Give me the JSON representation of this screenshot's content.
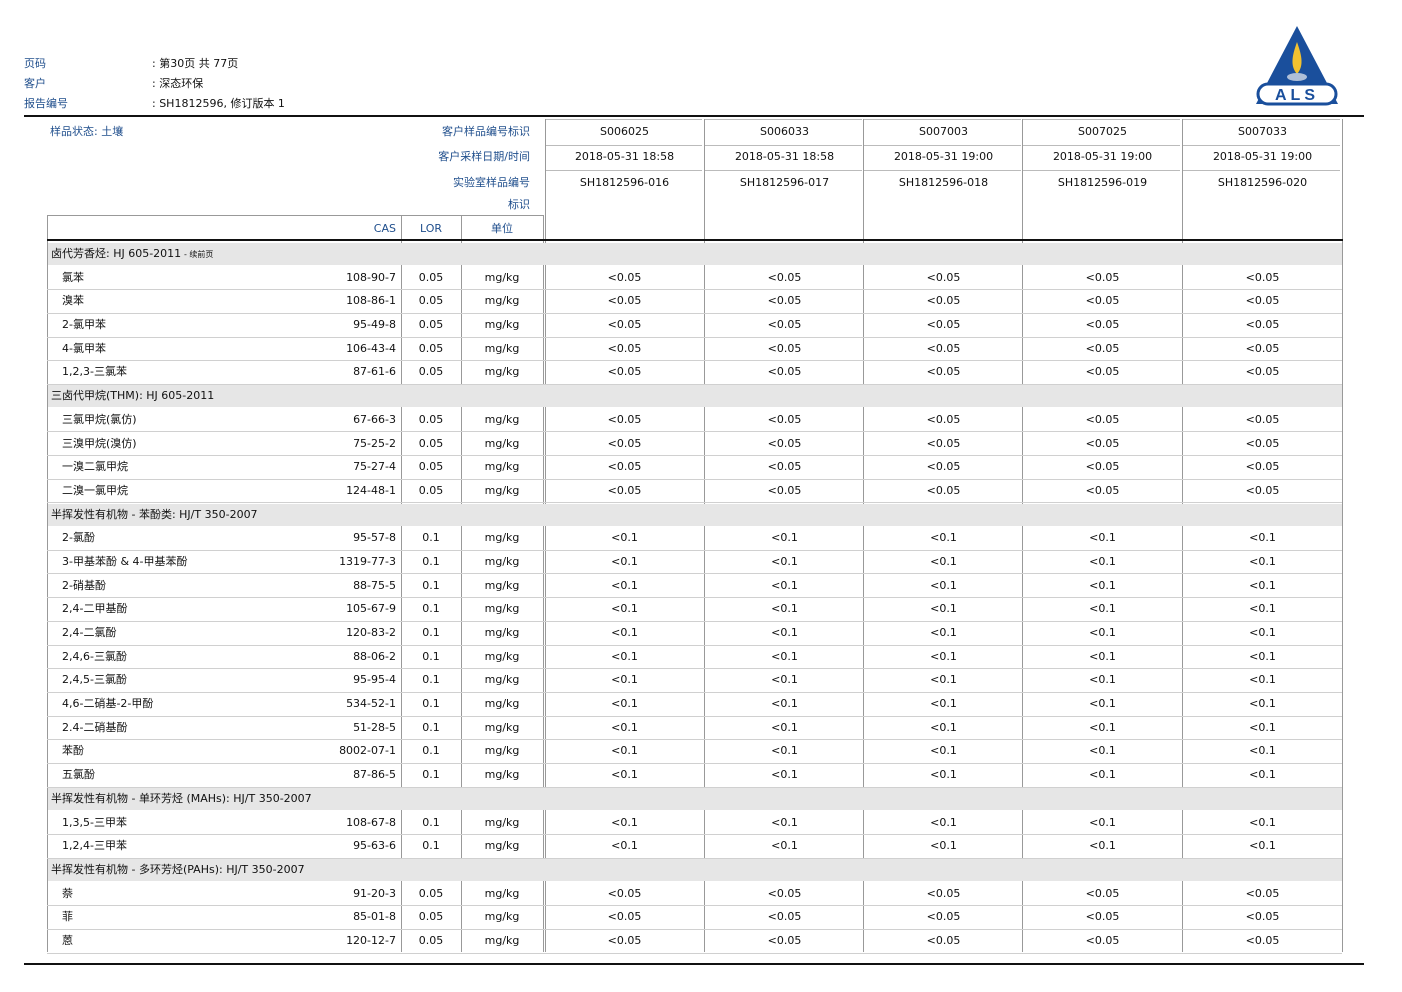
{
  "header": {
    "fields": [
      {
        "label": "页码",
        "value": ": 第30页 共 77页"
      },
      {
        "label": "客户",
        "value": ": 深态环保"
      },
      {
        "label": "报告编号",
        "value": ": SH1812596, 修订版本 1"
      }
    ],
    "logo": "ALS"
  },
  "sample_state": "样品状态: 土壤",
  "sample_labels": [
    "客户样品编号标识",
    "客户采样日期/时间",
    "实验室样品编号",
    "标识"
  ],
  "columns": [
    "CAS",
    "LOR",
    "单位"
  ],
  "samples": [
    {
      "id": "S006025",
      "date": "2018-05-31 18:58",
      "lab": "SH1812596-016"
    },
    {
      "id": "S006033",
      "date": "2018-05-31 18:58",
      "lab": "SH1812596-017"
    },
    {
      "id": "S007003",
      "date": "2018-05-31 19:00",
      "lab": "SH1812596-018"
    },
    {
      "id": "S007025",
      "date": "2018-05-31 19:00",
      "lab": "SH1812596-019"
    },
    {
      "id": "S007033",
      "date": "2018-05-31 19:00",
      "lab": "SH1812596-020"
    }
  ],
  "groups": [
    {
      "title": "卤代芳香烃: HJ 605-2011",
      "note": "- 续前页",
      "rows": [
        {
          "name": "氯苯",
          "cas": "108-90-7",
          "lor": 0.05,
          "unit": "mg/kg",
          "results": [
            "<0.05",
            "<0.05",
            "<0.05",
            "<0.05",
            "<0.05"
          ]
        },
        {
          "name": "溴苯",
          "cas": "108-86-1",
          "lor": 0.05,
          "unit": "mg/kg",
          "results": [
            "<0.05",
            "<0.05",
            "<0.05",
            "<0.05",
            "<0.05"
          ]
        },
        {
          "name": "2-氯甲苯",
          "cas": "95-49-8",
          "lor": 0.05,
          "unit": "mg/kg",
          "results": [
            "<0.05",
            "<0.05",
            "<0.05",
            "<0.05",
            "<0.05"
          ]
        },
        {
          "name": "4-氯甲苯",
          "cas": "106-43-4",
          "lor": 0.05,
          "unit": "mg/kg",
          "results": [
            "<0.05",
            "<0.05",
            "<0.05",
            "<0.05",
            "<0.05"
          ]
        },
        {
          "name": "1,2,3-三氯苯",
          "cas": "87-61-6",
          "lor": 0.05,
          "unit": "mg/kg",
          "results": [
            "<0.05",
            "<0.05",
            "<0.05",
            "<0.05",
            "<0.05"
          ]
        }
      ]
    },
    {
      "title": "三卤代甲烷(THM): HJ 605-2011",
      "rows": [
        {
          "name": "三氯甲烷(氯仿)",
          "cas": "67-66-3",
          "lor": 0.05,
          "unit": "mg/kg",
          "results": [
            "<0.05",
            "<0.05",
            "<0.05",
            "<0.05",
            "<0.05"
          ]
        },
        {
          "name": "三溴甲烷(溴仿)",
          "cas": "75-25-2",
          "lor": 0.05,
          "unit": "mg/kg",
          "results": [
            "<0.05",
            "<0.05",
            "<0.05",
            "<0.05",
            "<0.05"
          ]
        },
        {
          "name": "一溴二氯甲烷",
          "cas": "75-27-4",
          "lor": 0.05,
          "unit": "mg/kg",
          "results": [
            "<0.05",
            "<0.05",
            "<0.05",
            "<0.05",
            "<0.05"
          ]
        },
        {
          "name": "二溴一氯甲烷",
          "cas": "124-48-1",
          "lor": 0.05,
          "unit": "mg/kg",
          "results": [
            "<0.05",
            "<0.05",
            "<0.05",
            "<0.05",
            "<0.05"
          ]
        }
      ]
    },
    {
      "title": "半挥发性有机物 - 苯酚类: HJ/T 350-2007",
      "rows": [
        {
          "name": "2-氯酚",
          "cas": "95-57-8",
          "lor": 0.1,
          "unit": "mg/kg",
          "results": [
            "<0.1",
            "<0.1",
            "<0.1",
            "<0.1",
            "<0.1"
          ]
        },
        {
          "name": "3-甲基苯酚 & 4-甲基苯酚",
          "cas": "1319-77-3",
          "lor": 0.1,
          "unit": "mg/kg",
          "results": [
            "<0.1",
            "<0.1",
            "<0.1",
            "<0.1",
            "<0.1"
          ]
        },
        {
          "name": "2-硝基酚",
          "cas": "88-75-5",
          "lor": 0.1,
          "unit": "mg/kg",
          "results": [
            "<0.1",
            "<0.1",
            "<0.1",
            "<0.1",
            "<0.1"
          ]
        },
        {
          "name": "2,4-二甲基酚",
          "cas": "105-67-9",
          "lor": 0.1,
          "unit": "mg/kg",
          "results": [
            "<0.1",
            "<0.1",
            "<0.1",
            "<0.1",
            "<0.1"
          ]
        },
        {
          "name": "2,4-二氯酚",
          "cas": "120-83-2",
          "lor": 0.1,
          "unit": "mg/kg",
          "results": [
            "<0.1",
            "<0.1",
            "<0.1",
            "<0.1",
            "<0.1"
          ]
        },
        {
          "name": "2,4,6-三氯酚",
          "cas": "88-06-2",
          "lor": 0.1,
          "unit": "mg/kg",
          "results": [
            "<0.1",
            "<0.1",
            "<0.1",
            "<0.1",
            "<0.1"
          ]
        },
        {
          "name": "2,4,5-三氯酚",
          "cas": "95-95-4",
          "lor": 0.1,
          "unit": "mg/kg",
          "results": [
            "<0.1",
            "<0.1",
            "<0.1",
            "<0.1",
            "<0.1"
          ]
        },
        {
          "name": "4,6-二硝基-2-甲酚",
          "cas": "534-52-1",
          "lor": 0.1,
          "unit": "mg/kg",
          "results": [
            "<0.1",
            "<0.1",
            "<0.1",
            "<0.1",
            "<0.1"
          ]
        },
        {
          "name": "2.4-二硝基酚",
          "cas": "51-28-5",
          "lor": 0.1,
          "unit": "mg/kg",
          "results": [
            "<0.1",
            "<0.1",
            "<0.1",
            "<0.1",
            "<0.1"
          ]
        },
        {
          "name": "苯酚",
          "cas": "8002-07-1",
          "lor": 0.1,
          "unit": "mg/kg",
          "results": [
            "<0.1",
            "<0.1",
            "<0.1",
            "<0.1",
            "<0.1"
          ]
        },
        {
          "name": "五氯酚",
          "cas": "87-86-5",
          "lor": 0.1,
          "unit": "mg/kg",
          "results": [
            "<0.1",
            "<0.1",
            "<0.1",
            "<0.1",
            "<0.1"
          ]
        }
      ]
    },
    {
      "title": "半挥发性有机物 - 单环芳烃 (MAHs): HJ/T 350-2007",
      "rows": [
        {
          "name": "1,3,5-三甲苯",
          "cas": "108-67-8",
          "lor": 0.1,
          "unit": "mg/kg",
          "results": [
            "<0.1",
            "<0.1",
            "<0.1",
            "<0.1",
            "<0.1"
          ]
        },
        {
          "name": "1,2,4-三甲苯",
          "cas": "95-63-6",
          "lor": 0.1,
          "unit": "mg/kg",
          "results": [
            "<0.1",
            "<0.1",
            "<0.1",
            "<0.1",
            "<0.1"
          ]
        }
      ]
    },
    {
      "title": "半挥发性有机物 - 多环芳烃(PAHs): HJ/T 350-2007",
      "rows": [
        {
          "name": "萘",
          "cas": "91-20-3",
          "lor": 0.05,
          "unit": "mg/kg",
          "results": [
            "<0.05",
            "<0.05",
            "<0.05",
            "<0.05",
            "<0.05"
          ]
        },
        {
          "name": "菲",
          "cas": "85-01-8",
          "lor": 0.05,
          "unit": "mg/kg",
          "results": [
            "<0.05",
            "<0.05",
            "<0.05",
            "<0.05",
            "<0.05"
          ]
        },
        {
          "name": "蒽",
          "cas": "120-12-7",
          "lor": 0.05,
          "unit": "mg/kg",
          "results": [
            "<0.05",
            "<0.05",
            "<0.05",
            "<0.05",
            "<0.05"
          ]
        }
      ]
    }
  ]
}
